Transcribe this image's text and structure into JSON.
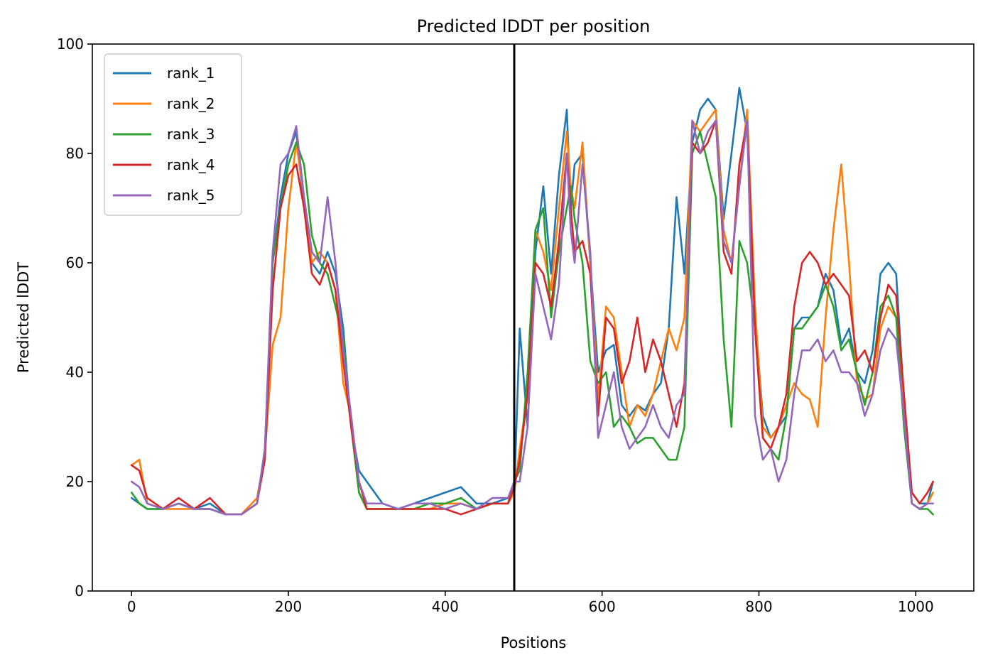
{
  "chart_data": {
    "type": "line",
    "title": "Predicted lDDT per position",
    "xlabel": "Positions",
    "ylabel": "Predicted lDDT",
    "xlim": [
      -50,
      1074
    ],
    "ylim": [
      0,
      100
    ],
    "xticks": [
      0,
      200,
      400,
      600,
      800,
      1000
    ],
    "yticks": [
      0,
      20,
      40,
      60,
      80,
      100
    ],
    "grid": false,
    "legend_position": "upper-left",
    "vertical_line_x": 488,
    "series": [
      {
        "name": "rank_1",
        "color": "#1f77b4",
        "x": [
          0,
          10,
          20,
          40,
          60,
          80,
          100,
          120,
          140,
          160,
          170,
          180,
          190,
          200,
          210,
          220,
          230,
          240,
          250,
          260,
          270,
          280,
          290,
          300,
          320,
          340,
          360,
          380,
          400,
          420,
          440,
          460,
          480,
          488,
          495,
          505,
          515,
          525,
          535,
          545,
          555,
          560,
          565,
          575,
          585,
          595,
          605,
          615,
          625,
          635,
          645,
          655,
          665,
          675,
          685,
          695,
          705,
          715,
          725,
          735,
          745,
          755,
          765,
          775,
          785,
          795,
          805,
          815,
          825,
          835,
          845,
          855,
          865,
          875,
          885,
          895,
          905,
          915,
          925,
          935,
          945,
          955,
          965,
          975,
          985,
          995,
          1005,
          1015,
          1022
        ],
        "y": [
          17,
          16,
          15,
          15,
          16,
          15,
          16,
          14,
          14,
          16,
          25,
          60,
          72,
          80,
          84,
          70,
          60,
          58,
          62,
          58,
          48,
          30,
          22,
          20,
          16,
          15,
          16,
          17,
          18,
          19,
          16,
          16,
          17,
          18,
          48,
          30,
          62,
          74,
          58,
          76,
          88,
          70,
          78,
          80,
          60,
          40,
          44,
          45,
          34,
          32,
          34,
          33,
          36,
          38,
          48,
          72,
          58,
          82,
          88,
          90,
          88,
          68,
          80,
          92,
          84,
          50,
          32,
          28,
          30,
          32,
          48,
          50,
          50,
          52,
          58,
          55,
          45,
          48,
          40,
          38,
          44,
          58,
          60,
          58,
          35,
          18,
          16,
          16,
          20
        ]
      },
      {
        "name": "rank_2",
        "color": "#ff7f0e",
        "x": [
          0,
          10,
          20,
          40,
          60,
          80,
          100,
          120,
          140,
          160,
          170,
          180,
          190,
          200,
          210,
          220,
          230,
          240,
          250,
          260,
          270,
          280,
          290,
          300,
          320,
          340,
          360,
          380,
          400,
          420,
          440,
          460,
          480,
          488,
          495,
          505,
          515,
          525,
          535,
          545,
          555,
          560,
          565,
          575,
          585,
          595,
          605,
          615,
          625,
          635,
          645,
          655,
          665,
          675,
          685,
          695,
          705,
          715,
          725,
          735,
          745,
          755,
          765,
          775,
          785,
          795,
          805,
          815,
          825,
          835,
          845,
          855,
          865,
          875,
          885,
          895,
          905,
          915,
          925,
          935,
          945,
          955,
          965,
          975,
          985,
          995,
          1005,
          1015,
          1022
        ],
        "y": [
          23,
          24,
          16,
          15,
          15,
          15,
          15,
          14,
          14,
          17,
          25,
          45,
          50,
          70,
          82,
          72,
          60,
          62,
          60,
          55,
          38,
          32,
          18,
          15,
          15,
          15,
          15,
          15,
          16,
          16,
          15,
          16,
          16,
          18,
          26,
          36,
          66,
          62,
          55,
          70,
          84,
          74,
          70,
          82,
          60,
          35,
          52,
          50,
          40,
          30,
          34,
          32,
          36,
          42,
          48,
          44,
          50,
          86,
          84,
          86,
          88,
          66,
          60,
          74,
          88,
          52,
          30,
          28,
          30,
          34,
          38,
          36,
          35,
          30,
          50,
          66,
          78,
          60,
          38,
          35,
          36,
          48,
          52,
          50,
          34,
          16,
          15,
          16,
          18
        ]
      },
      {
        "name": "rank_3",
        "color": "#2ca02c",
        "x": [
          0,
          10,
          20,
          40,
          60,
          80,
          100,
          120,
          140,
          160,
          170,
          180,
          190,
          200,
          210,
          220,
          230,
          240,
          250,
          260,
          270,
          280,
          290,
          300,
          320,
          340,
          360,
          380,
          400,
          420,
          440,
          460,
          480,
          488,
          495,
          505,
          515,
          525,
          535,
          545,
          555,
          560,
          565,
          575,
          585,
          595,
          605,
          615,
          625,
          635,
          645,
          655,
          665,
          675,
          685,
          695,
          705,
          715,
          725,
          735,
          745,
          755,
          765,
          775,
          785,
          795,
          805,
          815,
          825,
          835,
          845,
          855,
          865,
          875,
          885,
          895,
          905,
          915,
          925,
          935,
          945,
          955,
          965,
          975,
          985,
          995,
          1005,
          1015,
          1022
        ],
        "y": [
          18,
          16,
          15,
          15,
          16,
          15,
          15,
          14,
          14,
          16,
          26,
          60,
          70,
          78,
          82,
          78,
          65,
          60,
          58,
          52,
          46,
          30,
          18,
          15,
          15,
          15,
          15,
          16,
          16,
          17,
          15,
          16,
          16,
          20,
          22,
          40,
          66,
          70,
          50,
          62,
          70,
          74,
          68,
          60,
          42,
          38,
          40,
          30,
          32,
          30,
          27,
          28,
          28,
          26,
          24,
          24,
          30,
          80,
          84,
          78,
          72,
          46,
          30,
          64,
          60,
          48,
          28,
          26,
          24,
          32,
          48,
          48,
          50,
          52,
          56,
          52,
          44,
          46,
          40,
          34,
          40,
          52,
          54,
          50,
          30,
          16,
          15,
          15,
          14
        ]
      },
      {
        "name": "rank_4",
        "color": "#d62728",
        "x": [
          0,
          10,
          20,
          40,
          60,
          80,
          100,
          120,
          140,
          160,
          170,
          180,
          190,
          200,
          210,
          220,
          230,
          240,
          250,
          260,
          270,
          280,
          290,
          300,
          320,
          340,
          360,
          380,
          400,
          420,
          440,
          460,
          480,
          488,
          495,
          505,
          515,
          525,
          535,
          545,
          555,
          560,
          565,
          575,
          585,
          595,
          605,
          615,
          625,
          635,
          645,
          655,
          665,
          675,
          685,
          695,
          705,
          715,
          725,
          735,
          745,
          755,
          765,
          775,
          785,
          795,
          805,
          815,
          825,
          835,
          845,
          855,
          865,
          875,
          885,
          895,
          905,
          915,
          925,
          935,
          945,
          955,
          965,
          975,
          985,
          995,
          1005,
          1015,
          1022
        ],
        "y": [
          23,
          22,
          17,
          15,
          17,
          15,
          17,
          14,
          14,
          16,
          24,
          55,
          70,
          76,
          78,
          70,
          58,
          56,
          60,
          55,
          42,
          30,
          20,
          15,
          15,
          15,
          15,
          15,
          15,
          14,
          15,
          16,
          16,
          19,
          24,
          36,
          60,
          58,
          52,
          64,
          80,
          70,
          62,
          64,
          58,
          32,
          50,
          48,
          38,
          42,
          50,
          40,
          46,
          42,
          36,
          30,
          38,
          82,
          80,
          82,
          86,
          62,
          58,
          78,
          86,
          48,
          28,
          26,
          30,
          36,
          52,
          60,
          62,
          60,
          56,
          58,
          56,
          54,
          42,
          44,
          40,
          50,
          56,
          54,
          36,
          18,
          16,
          18,
          20
        ]
      },
      {
        "name": "rank_5",
        "color": "#9467bd",
        "x": [
          0,
          10,
          20,
          40,
          60,
          80,
          100,
          120,
          140,
          160,
          170,
          180,
          190,
          200,
          210,
          220,
          230,
          240,
          250,
          260,
          270,
          280,
          290,
          300,
          320,
          340,
          360,
          380,
          400,
          420,
          440,
          460,
          480,
          488,
          495,
          505,
          515,
          525,
          535,
          545,
          555,
          560,
          565,
          575,
          585,
          595,
          605,
          615,
          625,
          635,
          645,
          655,
          665,
          675,
          685,
          695,
          705,
          715,
          725,
          735,
          745,
          755,
          765,
          775,
          785,
          795,
          805,
          815,
          825,
          835,
          845,
          855,
          865,
          875,
          885,
          895,
          905,
          915,
          925,
          935,
          945,
          955,
          965,
          975,
          985,
          995,
          1005,
          1015,
          1022
        ],
        "y": [
          20,
          19,
          16,
          15,
          16,
          15,
          15,
          14,
          14,
          16,
          26,
          62,
          78,
          80,
          85,
          72,
          62,
          60,
          72,
          60,
          44,
          32,
          20,
          16,
          16,
          15,
          16,
          16,
          15,
          16,
          15,
          17,
          17,
          20,
          20,
          30,
          58,
          52,
          46,
          56,
          80,
          66,
          60,
          78,
          62,
          28,
          34,
          40,
          30,
          26,
          28,
          30,
          34,
          30,
          28,
          34,
          36,
          86,
          80,
          84,
          86,
          64,
          60,
          74,
          86,
          32,
          24,
          26,
          20,
          24,
          36,
          44,
          44,
          46,
          42,
          44,
          40,
          40,
          38,
          32,
          36,
          44,
          48,
          46,
          32,
          16,
          15,
          16,
          16
        ]
      }
    ]
  }
}
